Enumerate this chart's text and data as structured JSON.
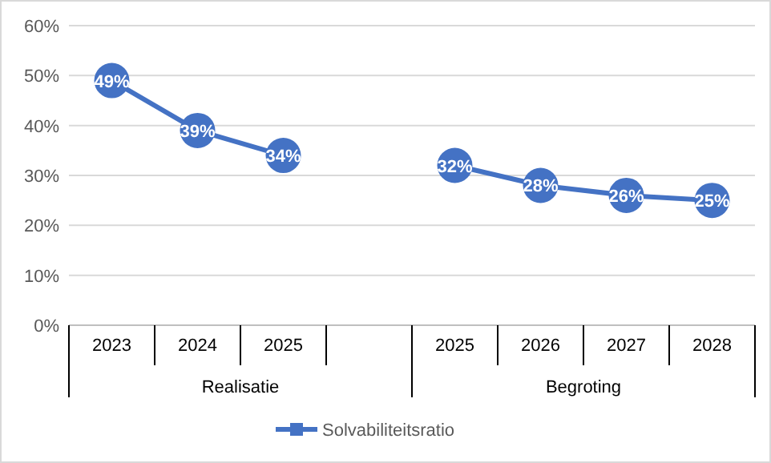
{
  "chart_data": {
    "type": "line",
    "categories": [
      "2023",
      "2024",
      "2025",
      null,
      "2025",
      "2026",
      "2027",
      "2028"
    ],
    "series": [
      {
        "name": "Solvabiliteitsratio",
        "color": "#4472c4",
        "values": [
          49,
          39,
          34,
          null,
          32,
          28,
          26,
          25
        ],
        "value_labels": [
          "49%",
          "39%",
          "34%",
          null,
          "32%",
          "28%",
          "26%",
          "25%"
        ]
      }
    ],
    "annotations": [
      "Realisatie",
      "Begroting"
    ],
    "ylim": [
      0,
      60
    ],
    "yticks": [
      {
        "value": 0,
        "label": "0%"
      },
      {
        "value": 10,
        "label": "10%"
      },
      {
        "value": 20,
        "label": "20%"
      },
      {
        "value": 30,
        "label": "30%"
      },
      {
        "value": 40,
        "label": "40%"
      },
      {
        "value": 50,
        "label": "50%"
      },
      {
        "value": 60,
        "label": "60%"
      }
    ],
    "grid": "y",
    "legend": "bottom",
    "marker": "circle",
    "line_style": "solid"
  }
}
